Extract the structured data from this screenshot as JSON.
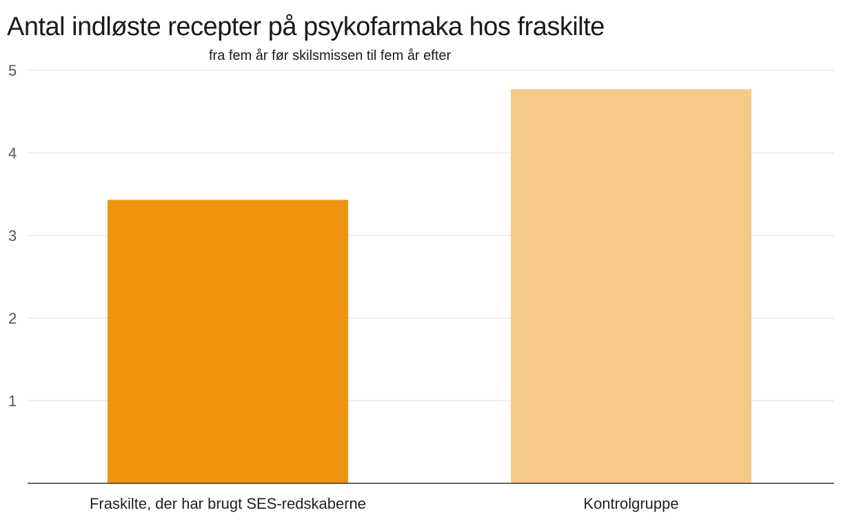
{
  "chart_data": {
    "type": "bar",
    "title": "Antal indløste recepter på psykofarmaka hos fraskilte",
    "subtitle": "fra fem år før skilsmissen til fem år efter",
    "categories": [
      "Fraskilte, der har brugt SES-redskaberne",
      "Kontrolgruppe"
    ],
    "values": [
      3.43,
      4.77
    ],
    "colors": [
      "#f0930e",
      "#f7c987"
    ],
    "ylim": [
      0,
      5
    ],
    "yticks": [
      "1",
      "2",
      "3",
      "4",
      "5"
    ],
    "grid": true,
    "xlabel": "",
    "ylabel": ""
  }
}
